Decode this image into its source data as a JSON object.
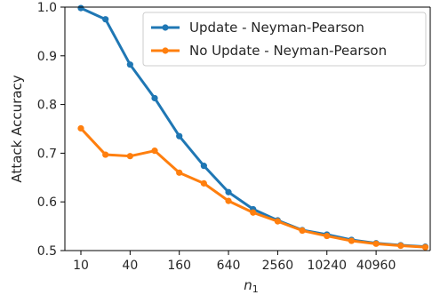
{
  "chart_data": {
    "type": "line",
    "title": "",
    "xlabel": "n₁",
    "ylabel": "Attack Accuracy",
    "x_scale": "log2",
    "x": [
      10,
      20,
      40,
      80,
      160,
      320,
      640,
      1280,
      2560,
      5120,
      10240,
      20480,
      40960,
      81920,
      163840
    ],
    "x_tick_labels": [
      "10",
      "40",
      "160",
      "640",
      "2560",
      "10240",
      "40960"
    ],
    "x_ticks": [
      10,
      40,
      160,
      640,
      2560,
      10240,
      40960
    ],
    "y_ticks": [
      0.5,
      0.6,
      0.7,
      0.8,
      0.9,
      1.0
    ],
    "y_tick_labels": [
      "0.5",
      "0.6",
      "0.7",
      "0.8",
      "0.9",
      "1.0"
    ],
    "ylim": [
      0.5,
      1.0
    ],
    "legend_position": "top-right",
    "grid": false,
    "series": [
      {
        "name": "Update - Neyman-Pearson",
        "color": "#1f77b4",
        "values": [
          0.998,
          0.975,
          0.882,
          0.813,
          0.735,
          0.674,
          0.62,
          0.585,
          0.562,
          0.542,
          0.533,
          0.522,
          0.515,
          0.511,
          0.508
        ]
      },
      {
        "name": "No Update - Neyman-Pearson",
        "color": "#ff7f0e",
        "values": [
          0.751,
          0.697,
          0.694,
          0.705,
          0.66,
          0.638,
          0.602,
          0.578,
          0.56,
          0.541,
          0.53,
          0.52,
          0.514,
          0.51,
          0.507
        ]
      }
    ]
  }
}
